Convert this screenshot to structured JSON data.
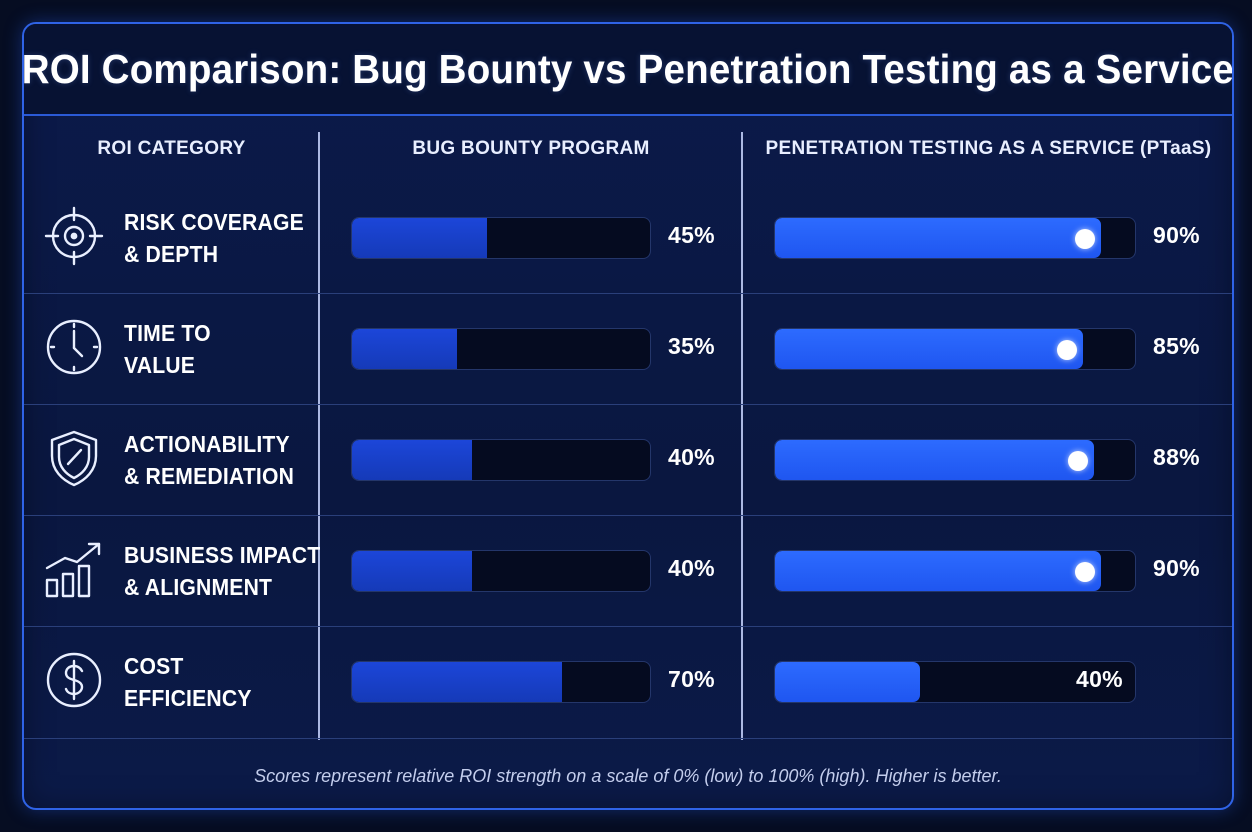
{
  "title": "ROI Comparison: Bug Bounty vs Penetration Testing as a Service",
  "columns": {
    "category": "ROI CATEGORY",
    "bug_bounty": "BUG BOUNTY PROGRAM",
    "ptaas": "PENETRATION TESTING AS A SERVICE (PTaaS)"
  },
  "colors": {
    "bug_bounty_fill": "#1c46d9",
    "ptaas_fill": "#2d6bff",
    "track": "#050b20",
    "frame_border": "#2f63e6"
  },
  "chart_data": {
    "type": "bar",
    "orientation": "horizontal",
    "categories": [
      [
        "RISK COVERAGE",
        "& DEPTH"
      ],
      [
        "TIME TO",
        "VALUE"
      ],
      [
        "ACTIONABILITY",
        "& REMEDIATION"
      ],
      [
        "BUSINESS IMPACT",
        "& ALIGNMENT"
      ],
      [
        "COST",
        "EFFICIENCY"
      ]
    ],
    "category_icons": [
      "crosshair-icon",
      "clock-icon",
      "shield-check-icon",
      "growth-chart-icon",
      "dollar-icon"
    ],
    "series": [
      {
        "name": "BUG BOUNTY PROGRAM",
        "values": [
          45,
          35,
          40,
          40,
          70
        ],
        "labels": [
          "45%",
          "35%",
          "40%",
          "40%",
          "70%"
        ]
      },
      {
        "name": "PENETRATION TESTING AS A SERVICE (PTaaS)",
        "values": [
          90,
          85,
          88,
          90,
          40
        ],
        "labels": [
          "90%",
          "85%",
          "88%",
          "90%",
          "40%"
        ]
      }
    ],
    "xlim": [
      0,
      100
    ],
    "unit": "%"
  },
  "footer": "Scores represent relative ROI strength on a scale of 0% (low) to 100% (high). Higher is better."
}
